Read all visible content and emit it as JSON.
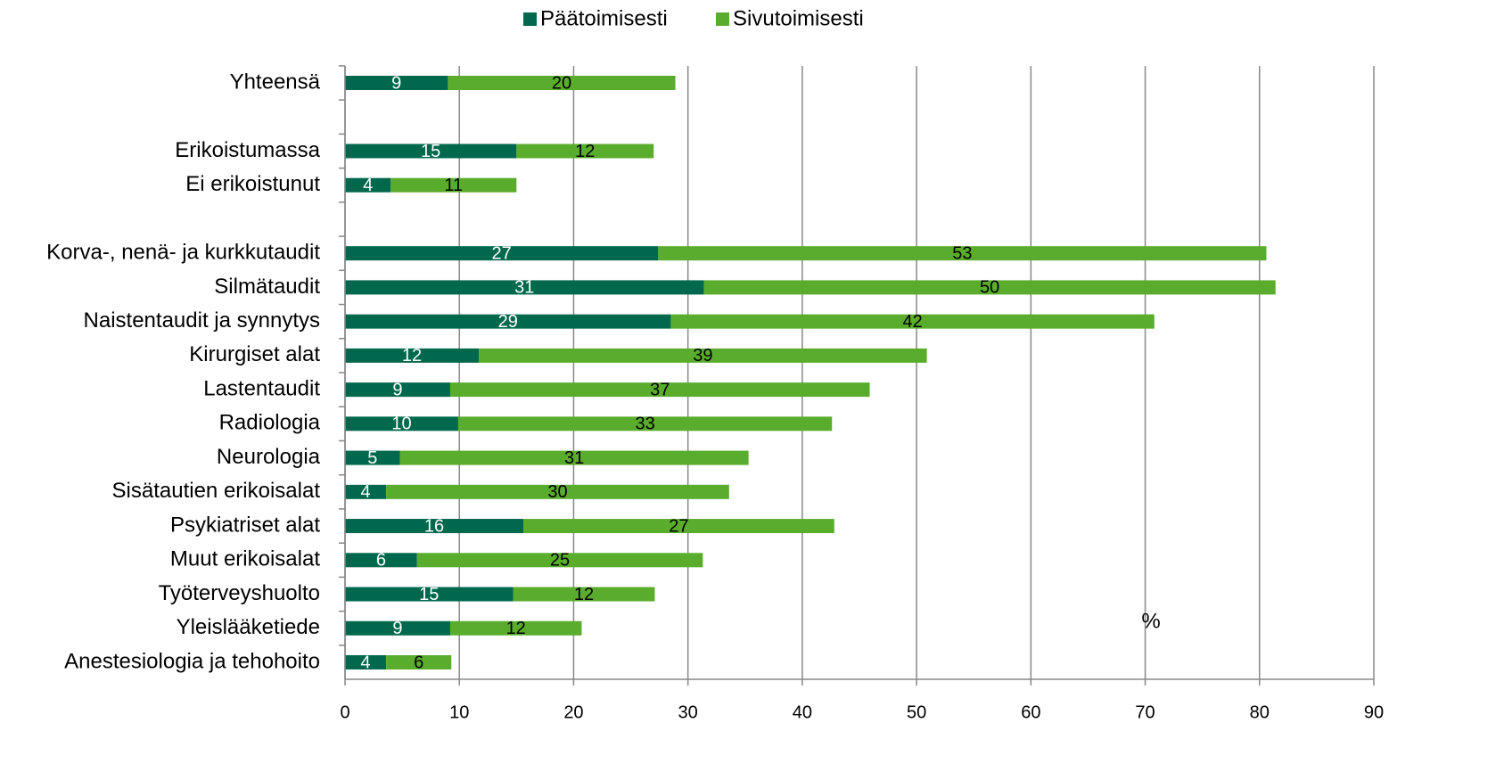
{
  "chart_data": {
    "type": "bar",
    "orientation": "horizontal",
    "stacked": true,
    "categories": [
      "Yhteensä",
      null,
      "Erikoistumassa",
      "Ei erikoistunut",
      null,
      "Korva-, nenä- ja kurkkutaudit",
      "Silmätaudit",
      "Naistentaudit ja synnytys",
      "Kirurgiset alat",
      "Lastentaudit",
      "Radiologia",
      "Neurologia",
      "Sisätautien erikoisalat",
      "Psykiatriset alat",
      "Muut erikoisalat",
      "Työterveyshuolto",
      "Yleislääketiede",
      "Anestesiologia ja tehohoito"
    ],
    "series": [
      {
        "name": "Päätoimisesti",
        "color": "#00684c",
        "values": [
          9.0,
          null,
          15.0,
          4.0,
          null,
          27.4,
          31.4,
          28.5,
          11.7,
          9.2,
          9.9,
          4.8,
          3.6,
          15.6,
          6.3,
          14.7,
          9.2,
          3.6
        ],
        "value_labels": [
          "9",
          null,
          "15",
          "4",
          null,
          "27",
          "31",
          "29",
          "12",
          "9",
          "10",
          "5",
          "4",
          "16",
          "6",
          "15",
          "9",
          "4"
        ]
      },
      {
        "name": "Sivutoimisesti",
        "color": "#5aad2c",
        "values": [
          19.9,
          null,
          12.0,
          11.0,
          null,
          53.2,
          50.0,
          42.3,
          39.2,
          36.7,
          32.7,
          30.5,
          30.0,
          27.2,
          25.0,
          12.4,
          11.5,
          5.7
        ],
        "value_labels": [
          "20",
          null,
          "12",
          "11",
          null,
          "53",
          "50",
          "42",
          "39",
          "37",
          "33",
          "31",
          "30",
          "27",
          "25",
          "12",
          "12",
          "6"
        ]
      }
    ],
    "annotations": [
      "%"
    ],
    "xlim": [
      0,
      90
    ],
    "xticks": [
      0,
      10,
      20,
      30,
      40,
      50,
      60,
      70,
      80,
      90
    ],
    "grid": true,
    "legend": "top"
  }
}
